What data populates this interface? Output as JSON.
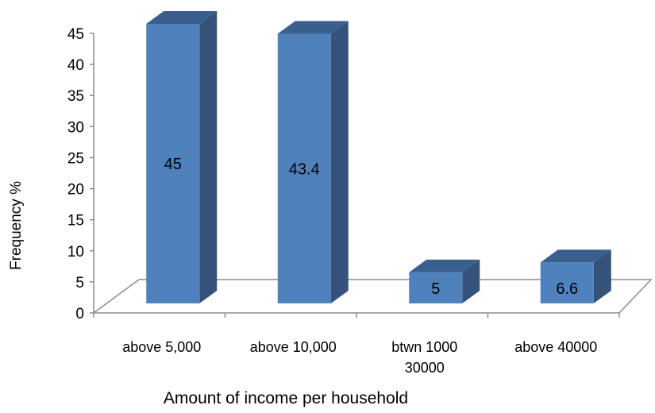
{
  "chart_data": {
    "type": "bar",
    "style": "3d-column",
    "categories": [
      [
        "above 5,000"
      ],
      [
        "above 10,000"
      ],
      [
        "btwn 1000",
        "30000"
      ],
      [
        "above 40000"
      ]
    ],
    "values": [
      45,
      43.4,
      5,
      6.6
    ],
    "data_labels": [
      "45",
      "43.4",
      "5",
      "6.6"
    ],
    "title": "",
    "xlabel": "Amount of income per household",
    "ylabel": "Frequency %",
    "ylim": [
      0,
      45
    ],
    "yticks": [
      0,
      5,
      10,
      15,
      20,
      25,
      30,
      35,
      40,
      45
    ],
    "grid": false,
    "legend": "none",
    "colors": {
      "bar_front": "#4f81bd",
      "bar_side": "#34527a",
      "bar_top": "#3a5f8f",
      "floor_line": "#8c8c8c",
      "text": "#000000"
    }
  }
}
